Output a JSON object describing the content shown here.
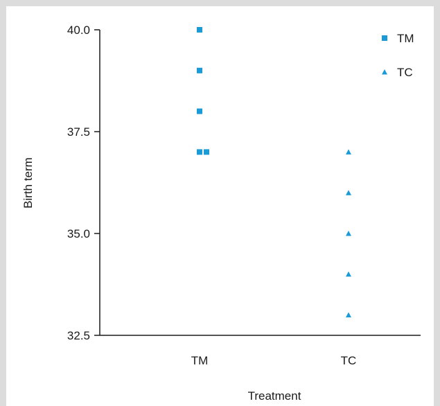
{
  "chart_data": {
    "type": "scatter",
    "xlabel": "Treatment",
    "ylabel": "Birth term",
    "categories": [
      "TM",
      "TC"
    ],
    "ylim": [
      32.5,
      40.0
    ],
    "yticks": [
      "32.5",
      "35.0",
      "37.5",
      "40.0"
    ],
    "legend_position": "top-right",
    "series": [
      {
        "name": "TM",
        "marker": "square",
        "color": "#1a9ad6",
        "points": [
          {
            "category": "TM",
            "y": 40
          },
          {
            "category": "TM",
            "y": 39
          },
          {
            "category": "TM",
            "y": 38
          },
          {
            "category": "TM",
            "y": 37
          },
          {
            "category": "TM",
            "y": 37
          }
        ]
      },
      {
        "name": "TC",
        "marker": "triangle",
        "color": "#1a9ad6",
        "points": [
          {
            "category": "TC",
            "y": 37
          },
          {
            "category": "TC",
            "y": 36
          },
          {
            "category": "TC",
            "y": 35
          },
          {
            "category": "TC",
            "y": 34
          },
          {
            "category": "TC",
            "y": 33
          }
        ]
      }
    ]
  }
}
